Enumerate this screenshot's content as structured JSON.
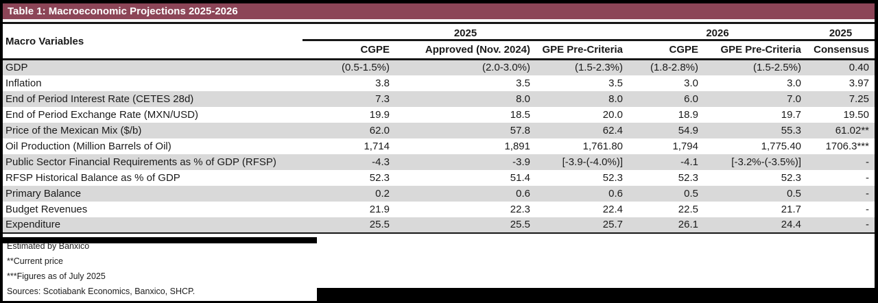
{
  "title": "Table 1: Macroeconomic Projections 2025-2026",
  "table": {
    "corner_label": "Macro Variables",
    "groups": [
      {
        "label": "2025",
        "span": 3
      },
      {
        "label": "2026",
        "span": 2
      },
      {
        "label": "2025",
        "span": 1
      }
    ],
    "columns": [
      "CGPE",
      "Approved (Nov. 2024)",
      "GPE Pre-Criteria",
      "CGPE",
      "GPE Pre-Criteria",
      "Consensus"
    ],
    "rows": [
      {
        "label": "GDP",
        "values": [
          "(0.5-1.5%)",
          "(2.0-3.0%)",
          "(1.5-2.3%)",
          "(1.8-2.8%)",
          "(1.5-2.5%)",
          "0.40"
        ]
      },
      {
        "label": "Inflation",
        "values": [
          "3.8",
          "3.5",
          "3.5",
          "3.0",
          "3.0",
          "3.97"
        ]
      },
      {
        "label": "End of Period Interest Rate (CETES 28d)",
        "values": [
          "7.3",
          "8.0",
          "8.0",
          "6.0",
          "7.0",
          "7.25"
        ]
      },
      {
        "label": "End of Period Exchange Rate (MXN/USD)",
        "values": [
          "19.9",
          "18.5",
          "20.0",
          "18.9",
          "19.7",
          "19.50"
        ]
      },
      {
        "label": "Price of the Mexican Mix ($/b)",
        "values": [
          "62.0",
          "57.8",
          "62.4",
          "54.9",
          "55.3",
          "61.02**"
        ]
      },
      {
        "label": "Oil Production (Million Barrels of Oil)",
        "values": [
          "1,714",
          "1,891",
          "1,761.80",
          "1,794",
          "1,775.40",
          "1706.3***"
        ]
      },
      {
        "label": "Public Sector Financial Requirements as % of GDP (RFSP)",
        "values": [
          "-4.3",
          "-3.9",
          "[-3.9-(-4.0%)]",
          "-4.1",
          "[-3.2%-(-3.5%)]",
          "-"
        ]
      },
      {
        "label": "RFSP Historical Balance as % of GDP",
        "values": [
          "52.3",
          "51.4",
          "52.3",
          "52.3",
          "52.3",
          "-"
        ]
      },
      {
        "label": "Primary Balance",
        "values": [
          "0.2",
          "0.6",
          "0.6",
          "0.5",
          "0.5",
          "-"
        ]
      },
      {
        "label": "Budget Revenues",
        "values": [
          "21.9",
          "22.3",
          "22.4",
          "22.5",
          "21.7",
          "-"
        ]
      },
      {
        "label": "Expenditure",
        "values": [
          "25.5",
          "25.5",
          "25.7",
          "26.1",
          "24.4",
          "-"
        ]
      }
    ]
  },
  "footnotes": [
    "Estimated by Banxico",
    "**Current price",
    "***Figures as of July 2025",
    "Sources: Scotiabank Economics, Banxico, SHCP."
  ],
  "colors": {
    "title_bg": "#8C4557",
    "title_text": "#FFFFFF",
    "row_alt_bg": "#D9D9D9",
    "rule": "#161616",
    "text": "#1A1A1A"
  }
}
